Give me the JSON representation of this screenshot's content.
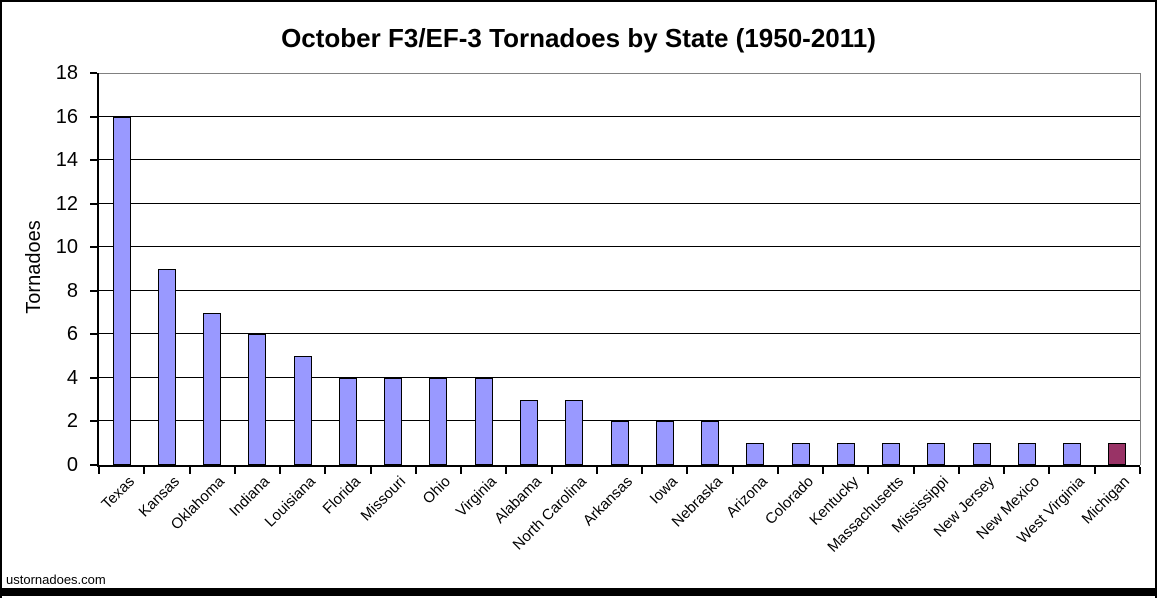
{
  "chart_data": {
    "type": "bar",
    "title": "October F3/EF-3 Tornadoes by State (1950-2011)",
    "ylabel": "Tornadoes",
    "xlabel": "",
    "categories": [
      "Texas",
      "Kansas",
      "Oklahoma",
      "Indiana",
      "Louisiana",
      "Florida",
      "Missouri",
      "Ohio",
      "Virginia",
      "Alabama",
      "North Carolina",
      "Arkansas",
      "Iowa",
      "Nebraska",
      "Arizona",
      "Colorado",
      "Kentucky",
      "Massachusetts",
      "Mississippi",
      "New Jersey",
      "New Mexico",
      "West Virginia",
      "Michigan"
    ],
    "values": [
      16,
      9,
      7,
      6,
      5,
      4,
      4,
      4,
      4,
      3,
      3,
      2,
      2,
      2,
      1,
      1,
      1,
      1,
      1,
      1,
      1,
      1,
      1
    ],
    "ylim": [
      0,
      18
    ],
    "ytick_step": 2,
    "yticks": [
      0,
      2,
      4,
      6,
      8,
      10,
      12,
      14,
      16,
      18
    ],
    "grid": true,
    "legend": "none",
    "highlight_category": "Michigan",
    "colors": {
      "bar_fill": "#9999FF",
      "bar_border": "#000000",
      "highlight_fill": "#993366",
      "gridline": "#000000",
      "axis": "#000000",
      "plot_border": "#808080"
    }
  },
  "footer": {
    "watermark": "ustornadoes.com"
  }
}
